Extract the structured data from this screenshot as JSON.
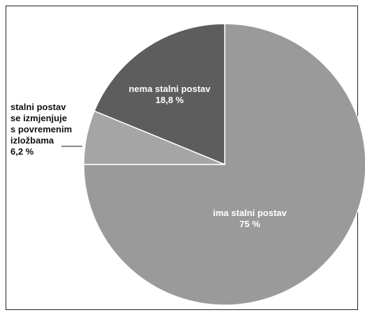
{
  "chart_data": {
    "type": "pie",
    "start_angle_deg": 0,
    "direction": "clockwise",
    "slices": [
      {
        "label_lines": [
          "ima stalni postav"
        ],
        "value_label": "75 %",
        "value": 75.0,
        "color": "#9a9a9a"
      },
      {
        "label_lines": [
          "stalni postav",
          "se izmjenjuje",
          "s povremenim",
          "izložbama"
        ],
        "value_label": "6,2 %",
        "value": 6.2,
        "color": "#a5a5a5"
      },
      {
        "label_lines": [
          "nema stalni postav"
        ],
        "value_label": "18,8 %",
        "value": 18.8,
        "color": "#5d5d5d"
      }
    ],
    "slice_border_color": "#ffffff",
    "frame_border_color": "#222222"
  }
}
